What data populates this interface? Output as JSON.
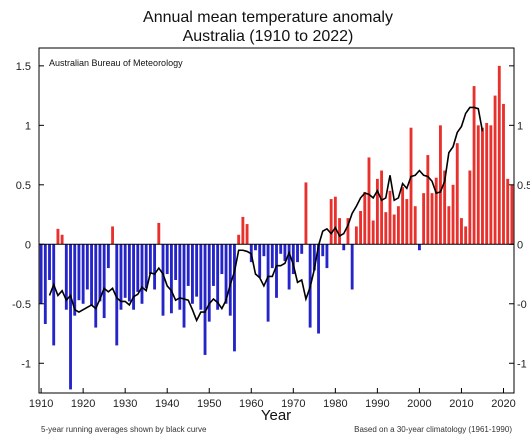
{
  "chart_data": {
    "type": "bar",
    "title_line1": "Annual mean temperature anomaly",
    "title_line2": "Australia (1910 to 2022)",
    "source_label": "Australian Bureau of Meteorology",
    "xlabel": "Year",
    "footnote_left": "5-year running averages shown by black curve",
    "footnote_right": "Based on a 30-year climatology (1961-1990)",
    "ylim": [
      -1.25,
      1.65
    ],
    "xlim": [
      1909.5,
      2022.5
    ],
    "yticks": [
      1.5,
      1,
      0.5,
      0,
      -0.5,
      -1
    ],
    "ytick_labels": [
      "1.5",
      "1",
      "0.5",
      "0",
      "-0.5",
      "-1"
    ],
    "right_tick_labels": [
      "1",
      "0.5",
      "0",
      "-0",
      "-1"
    ],
    "xticks": [
      1910,
      1920,
      1930,
      1940,
      1950,
      1960,
      1970,
      1980,
      1990,
      2000,
      2010,
      2020
    ],
    "xtick_labels": [
      "1910",
      "1920",
      "1930",
      "1940",
      "1950",
      "1960",
      "1970",
      "1980",
      "1990",
      "2000",
      "2010",
      "2020"
    ],
    "grid": false,
    "colors": {
      "positive": "#e8312c",
      "negative": "#2424c8",
      "curve": "#000000"
    },
    "years": [
      1910,
      1911,
      1912,
      1913,
      1914,
      1915,
      1916,
      1917,
      1918,
      1919,
      1920,
      1921,
      1922,
      1923,
      1924,
      1925,
      1926,
      1927,
      1928,
      1929,
      1930,
      1931,
      1932,
      1933,
      1934,
      1935,
      1936,
      1937,
      1938,
      1939,
      1940,
      1941,
      1942,
      1943,
      1944,
      1945,
      1946,
      1947,
      1948,
      1949,
      1950,
      1951,
      1952,
      1953,
      1954,
      1955,
      1956,
      1957,
      1958,
      1959,
      1960,
      1961,
      1962,
      1963,
      1964,
      1965,
      1966,
      1967,
      1968,
      1969,
      1970,
      1971,
      1972,
      1973,
      1974,
      1975,
      1976,
      1977,
      1978,
      1979,
      1980,
      1981,
      1982,
      1983,
      1984,
      1985,
      1986,
      1987,
      1988,
      1989,
      1990,
      1991,
      1992,
      1993,
      1994,
      1995,
      1996,
      1997,
      1998,
      1999,
      2000,
      2001,
      2002,
      2003,
      2004,
      2005,
      2006,
      2007,
      2008,
      2009,
      2010,
      2011,
      2012,
      2013,
      2014,
      2015,
      2016,
      2017,
      2018,
      2019,
      2020,
      2021,
      2022
    ],
    "values": [
      -0.5,
      -0.67,
      -0.3,
      -0.85,
      0.13,
      0.08,
      -0.55,
      -1.22,
      -0.6,
      -0.47,
      -0.5,
      -0.38,
      -0.51,
      -0.7,
      -0.48,
      -0.62,
      -0.2,
      0.15,
      -0.85,
      -0.55,
      -0.45,
      -0.48,
      -0.55,
      -0.4,
      -0.5,
      -0.37,
      -0.25,
      -0.38,
      0.18,
      -0.6,
      -0.25,
      -0.58,
      -0.3,
      -0.55,
      -0.7,
      -0.35,
      -0.5,
      -0.44,
      -0.55,
      -0.93,
      -0.65,
      -0.35,
      -0.55,
      -0.25,
      -0.5,
      -0.6,
      -0.9,
      0.08,
      0.23,
      0.17,
      -0.15,
      -0.05,
      -0.28,
      -0.1,
      -0.65,
      -0.2,
      -0.45,
      -0.08,
      -0.14,
      -0.38,
      -0.25,
      -0.15,
      -0.08,
      0.52,
      -0.7,
      -0.22,
      -0.75,
      -0.1,
      -0.2,
      0.38,
      0.4,
      0.22,
      -0.05,
      0.22,
      -0.38,
      0.15,
      0.28,
      0.44,
      0.73,
      0.2,
      0.55,
      0.62,
      0.27,
      0.45,
      0.25,
      0.32,
      0.48,
      0.38,
      0.98,
      0.32,
      -0.05,
      0.43,
      0.75,
      0.43,
      0.56,
      1.0,
      0.62,
      0.32,
      0.5,
      0.85,
      0.22,
      0.15,
      0.62,
      1.33,
      1.0,
      0.98,
      1.02,
      1.0,
      1.25,
      1.5,
      1.18,
      0.55,
      0.5
    ],
    "smooth": [
      null,
      null,
      -0.43,
      -0.34,
      -0.43,
      -0.39,
      -0.47,
      -0.43,
      -0.55,
      -0.57,
      -0.55,
      -0.53,
      -0.51,
      -0.54,
      -0.46,
      -0.37,
      -0.4,
      -0.37,
      -0.45,
      -0.48,
      -0.48,
      -0.51,
      -0.44,
      -0.42,
      -0.36,
      -0.39,
      -0.24,
      -0.25,
      -0.2,
      -0.25,
      -0.35,
      -0.39,
      -0.47,
      -0.45,
      -0.46,
      -0.47,
      -0.55,
      -0.64,
      -0.57,
      -0.57,
      -0.5,
      -0.46,
      -0.49,
      -0.54,
      -0.47,
      -0.34,
      -0.23,
      -0.05,
      -0.05,
      -0.06,
      -0.08,
      -0.25,
      -0.28,
      -0.35,
      -0.27,
      -0.27,
      -0.18,
      -0.18,
      -0.16,
      -0.07,
      -0.17,
      -0.32,
      -0.3,
      -0.46,
      -0.36,
      -0.21,
      -0.01,
      0.11,
      0.13,
      0.09,
      0.14,
      0.07,
      0.09,
      0.16,
      0.26,
      0.32,
      0.39,
      0.43,
      0.42,
      0.39,
      0.45,
      0.37,
      0.39,
      0.58,
      0.37,
      0.39,
      0.51,
      0.47,
      0.57,
      0.58,
      0.62,
      0.58,
      0.57,
      0.53,
      0.43,
      0.44,
      0.53,
      0.77,
      0.82,
      0.94,
      0.99,
      1.1,
      1.15,
      1.15,
      1.14,
      0.95,
      null,
      null,
      null,
      null,
      null,
      null,
      null
    ]
  }
}
